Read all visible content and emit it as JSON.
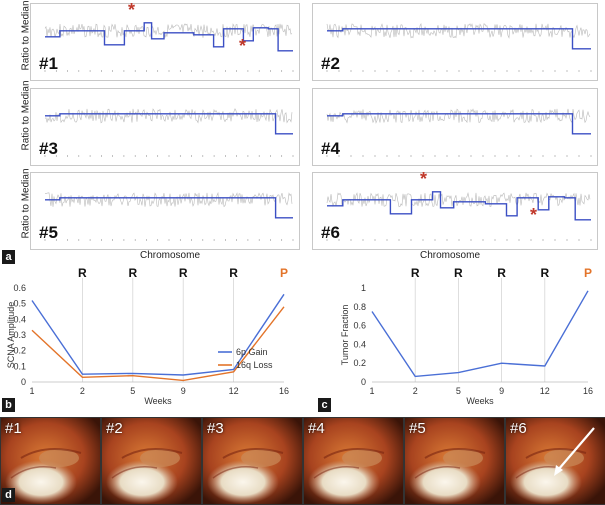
{
  "panel_a": {
    "tag": "a",
    "y_axis_label": "Ratio to Median",
    "x_axis_label": "Chromosome",
    "samples": [
      {
        "id": "#1",
        "profile": "multi",
        "asterisks": 2
      },
      {
        "id": "#2",
        "profile": "flat",
        "asterisks": 0
      },
      {
        "id": "#3",
        "profile": "flat",
        "asterisks": 0
      },
      {
        "id": "#4",
        "profile": "flat",
        "asterisks": 0
      },
      {
        "id": "#5",
        "profile": "flat",
        "asterisks": 0
      },
      {
        "id": "#6",
        "profile": "multi",
        "asterisks": 2
      }
    ],
    "asterisk_glyph": "*"
  },
  "panel_b": {
    "tag": "b",
    "markers": [
      "R",
      "R",
      "R",
      "R",
      "P"
    ]
  },
  "panel_c": {
    "tag": "c",
    "markers": [
      "R",
      "R",
      "R",
      "R",
      "P"
    ]
  },
  "panel_d": {
    "tag": "d",
    "photos": [
      "#1",
      "#2",
      "#3",
      "#4",
      "#5",
      "#6"
    ]
  },
  "colors": {
    "blue": "#4a6fd6",
    "orange": "#e3742a",
    "asterisk": "#c0392b",
    "marker_p": "#e3742a"
  },
  "chart_data": [
    {
      "type": "line",
      "title": "",
      "xlabel": "Weeks",
      "ylabel": "SCNA Amplitude",
      "categories": [
        "1",
        "2",
        "5",
        "9",
        "12",
        "16"
      ],
      "ylim": [
        0,
        0.6
      ],
      "yticks": [
        "0",
        "0.1",
        "0.2",
        "0.3",
        "0.4",
        "0.5",
        "0.6"
      ],
      "legend": "bottom-right",
      "series": [
        {
          "name": "6p Gain",
          "color": "#4a6fd6",
          "values": [
            0.52,
            0.05,
            0.055,
            0.045,
            0.08,
            0.56
          ]
        },
        {
          "name": "16q Loss",
          "color": "#e3742a",
          "values": [
            0.33,
            0.03,
            0.04,
            0.01,
            0.065,
            0.48
          ]
        }
      ]
    },
    {
      "type": "line",
      "title": "",
      "xlabel": "Weeks",
      "ylabel": "Tumor Fraction",
      "categories": [
        "1",
        "2",
        "5",
        "9",
        "12",
        "16"
      ],
      "ylim": [
        0,
        1
      ],
      "yticks": [
        "0",
        "0.2",
        "0.4",
        "0.6",
        "0.8",
        "1"
      ],
      "series": [
        {
          "name": "Tumor Fraction",
          "color": "#4a6fd6",
          "values": [
            0.75,
            0.06,
            0.1,
            0.2,
            0.17,
            0.97
          ]
        }
      ]
    }
  ]
}
